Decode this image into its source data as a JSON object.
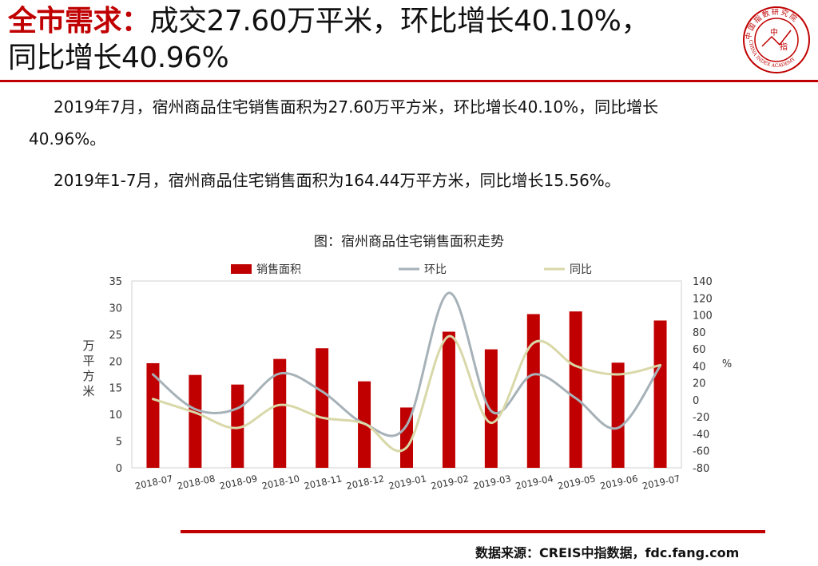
{
  "header": {
    "title_accent": "全市需求：",
    "title_rest_line1": "成交27.60万平米，环比增长40.10%，",
    "title_line2": "同比增长40.96%",
    "logo_text": "中国指数研究院",
    "logo_center_1": "中",
    "logo_center_2": "指",
    "logo_ring_text": "CHINA INDEX ACADEMY"
  },
  "body": {
    "para1_line1": "2019年7月，宿州商品住宅销售面积为27.60万平方米，环比增长40.10%，同比增长",
    "para1_line2": "40.96%。",
    "para2": "2019年1-7月，宿州商品住宅销售面积为164.44万平方米，同比增长15.56%。"
  },
  "chart_title": "图：宿州商品住宅销售面积走势",
  "footer": {
    "source": "数据来源：CREIS中指数据，fdc.fang.com"
  },
  "colors": {
    "accent": "#c00000",
    "bar": "#c00000",
    "mom": "#a6b2b8",
    "yoy": "#d8d8a8"
  },
  "chart_data": {
    "type": "bar",
    "categories": [
      "2018-07",
      "2018-08",
      "2018-09",
      "2018-10",
      "2018-11",
      "2018-12",
      "2019-01",
      "2019-02",
      "2019-03",
      "2019-04",
      "2019-05",
      "2019-06",
      "2019-07"
    ],
    "series": [
      {
        "name": "销售面积",
        "type": "bar",
        "axis": "left",
        "values": [
          19.6,
          17.4,
          15.6,
          20.4,
          22.4,
          16.2,
          11.3,
          25.5,
          22.2,
          28.8,
          29.3,
          19.7,
          27.6
        ]
      },
      {
        "name": "环比",
        "type": "line",
        "axis": "right",
        "smooth": true,
        "values": [
          30,
          -11,
          -10,
          31,
          10,
          -28,
          -30,
          126,
          -13,
          30,
          2,
          -33,
          40.1
        ]
      },
      {
        "name": "同比",
        "type": "line",
        "axis": "right",
        "smooth": true,
        "values": [
          1,
          -15,
          -33,
          -6,
          -21,
          -28,
          -56,
          75,
          -27,
          67,
          40,
          30,
          40.96
        ]
      }
    ],
    "ylabel_left": "万平方米",
    "ylabel_right": "%",
    "ylim_left": [
      0,
      35
    ],
    "yticks_left": [
      0,
      5,
      10,
      15,
      20,
      25,
      30,
      35
    ],
    "ylim_right": [
      -80,
      140
    ],
    "yticks_right": [
      -80,
      -60,
      -40,
      -20,
      0,
      20,
      40,
      60,
      80,
      100,
      120,
      140
    ],
    "legend_position": "top",
    "grid": false
  }
}
